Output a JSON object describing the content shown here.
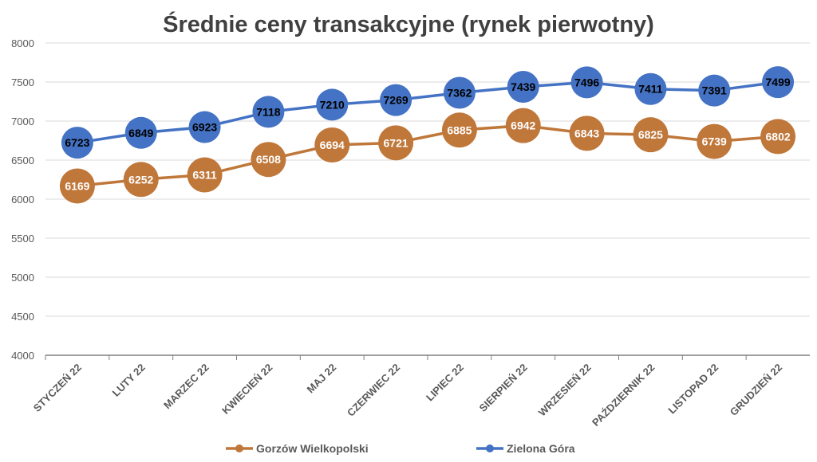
{
  "chart_data": {
    "type": "line",
    "title": "Średnie ceny transakcyjne (rynek pierwotny)",
    "xlabel": "",
    "ylabel": "",
    "ylim": [
      4000,
      8000
    ],
    "yticks": [
      4000,
      4500,
      5000,
      5500,
      6000,
      6500,
      7000,
      7500,
      8000
    ],
    "grid": true,
    "legend": "bottom",
    "categories": [
      "STYCZEŃ 22",
      "LUTY 22",
      "MARZEC 22",
      "KWIECIEŃ 22",
      "MAJ 22",
      "CZERWIEC 22",
      "LIPIEC 22",
      "SIERPIEŃ 22",
      "WRZESIEŃ 22",
      "PAŹDZIERNIK 22",
      "LISTOPAD 22",
      "GRUDZIEŃ 22"
    ],
    "series": [
      {
        "name": "Gorzów Wielkopolski",
        "color": "#C0773A",
        "label_color": "#FFFFFF",
        "values": [
          6169,
          6252,
          6311,
          6508,
          6694,
          6721,
          6885,
          6942,
          6843,
          6825,
          6739,
          6802
        ]
      },
      {
        "name": "Zielona Góra",
        "color": "#4472C4",
        "label_color": "#000000",
        "values": [
          6723,
          6849,
          6923,
          7118,
          7210,
          7269,
          7362,
          7439,
          7496,
          7411,
          7391,
          7499
        ]
      }
    ]
  }
}
